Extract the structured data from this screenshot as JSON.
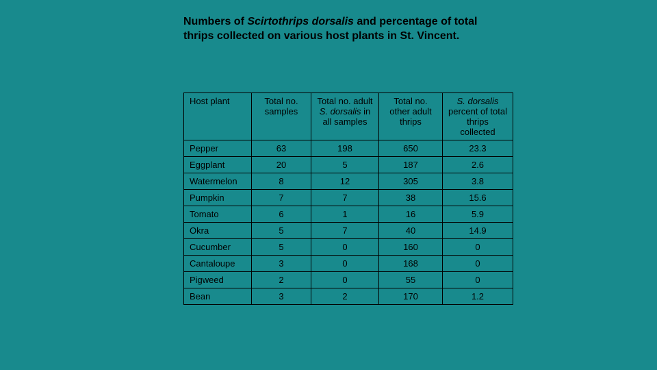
{
  "title": {
    "pre": "Numbers of ",
    "italic": "Scirtothrips dorsalis",
    "post": " and percentage of total thrips collected on various host plants in St. Vincent."
  },
  "table": {
    "columns": {
      "host": "Host plant",
      "samples": "Total no. samples",
      "adults_pre": "Total no. adult ",
      "adults_italic": "S. dorsalis",
      "adults_post": " in all samples",
      "other": "Total no. other adult thrips",
      "percent_italic": "S. dorsalis",
      "percent_post": " percent of total thrips collected"
    },
    "rows": [
      {
        "host": "Pepper",
        "samples": "63",
        "adults": "198",
        "other": "650",
        "percent": "23.3"
      },
      {
        "host": "Eggplant",
        "samples": "20",
        "adults": "5",
        "other": "187",
        "percent": "2.6"
      },
      {
        "host": "Watermelon",
        "samples": "8",
        "adults": "12",
        "other": "305",
        "percent": "3.8"
      },
      {
        "host": "Pumpkin",
        "samples": "7",
        "adults": "7",
        "other": "38",
        "percent": "15.6"
      },
      {
        "host": "Tomato",
        "samples": "6",
        "adults": "1",
        "other": "16",
        "percent": "5.9"
      },
      {
        "host": "Okra",
        "samples": "5",
        "adults": "7",
        "other": "40",
        "percent": "14.9"
      },
      {
        "host": "Cucumber",
        "samples": "5",
        "adults": "0",
        "other": "160",
        "percent": "0"
      },
      {
        "host": "Cantaloupe",
        "samples": "3",
        "adults": "0",
        "other": "168",
        "percent": "0"
      },
      {
        "host": "Pigweed",
        "samples": "2",
        "adults": "0",
        "other": "55",
        "percent": "0"
      },
      {
        "host": "Bean",
        "samples": "3",
        "adults": "2",
        "other": "170",
        "percent": "1.2"
      }
    ],
    "background_color": "#188a8d",
    "border_color": "#000000",
    "text_color": "#000000",
    "title_fontsize": 16,
    "cell_fontsize": 13
  }
}
